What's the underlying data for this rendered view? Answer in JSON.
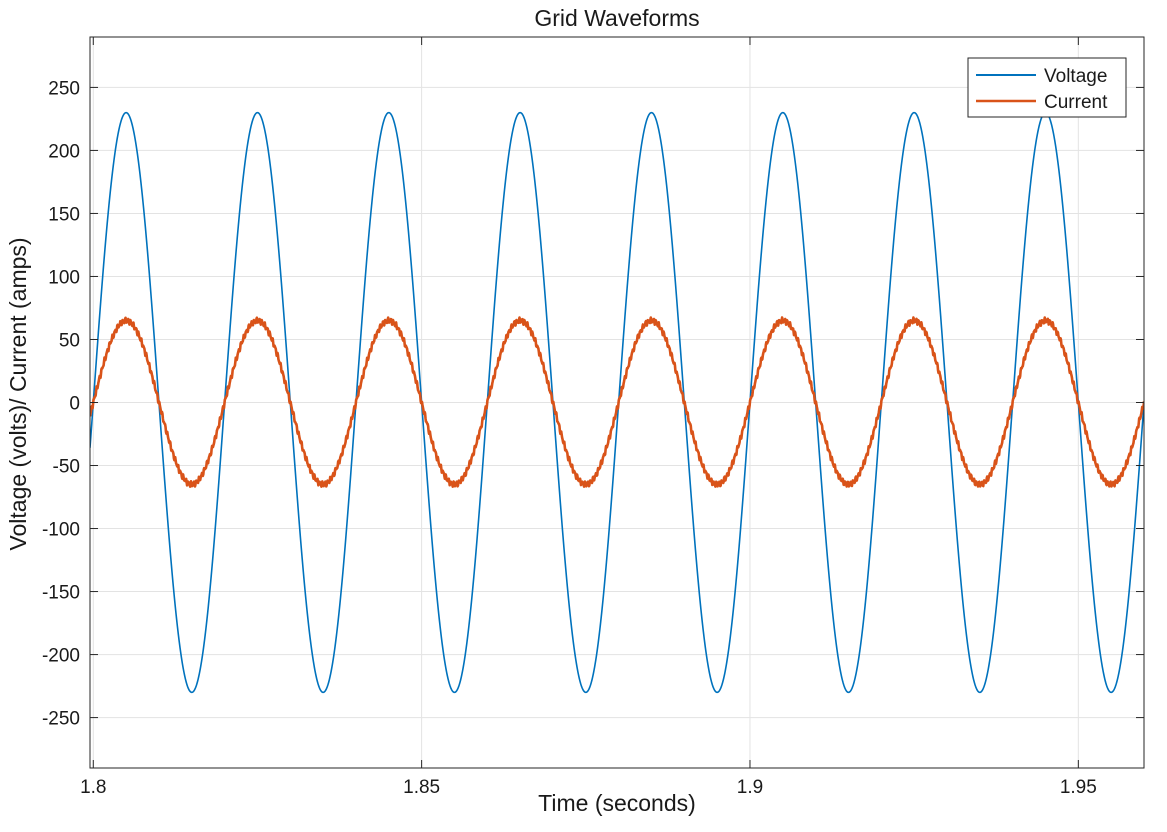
{
  "chart_data": {
    "type": "line",
    "title": "Grid Waveforms",
    "xlabel": "Time (seconds)",
    "ylabel": "Voltage (volts)/ Current (amps)",
    "xlim": [
      1.7995,
      1.96
    ],
    "ylim": [
      -290,
      290
    ],
    "xticks": [
      1.8,
      1.85,
      1.9,
      1.95
    ],
    "xtick_labels": [
      "1.8",
      "1.85",
      "1.9",
      "1.95"
    ],
    "yticks": [
      -250,
      -200,
      -150,
      -100,
      -50,
      0,
      50,
      100,
      150,
      200,
      250
    ],
    "ytick_labels": [
      "-250",
      "-200",
      "-150",
      "-100",
      "-50",
      "0",
      "50",
      "100",
      "150",
      "200",
      "250"
    ],
    "grid": true,
    "legend_position": "top-right",
    "series": [
      {
        "name": "Voltage",
        "color": "#0072BD",
        "waveform": "sine",
        "amplitude": 230,
        "frequency_hz": 50,
        "phase_deg": 0
      },
      {
        "name": "Current",
        "color": "#D95319",
        "waveform": "sine with small ripple",
        "amplitude": 65,
        "frequency_hz": 50,
        "phase_deg": 0
      }
    ]
  }
}
